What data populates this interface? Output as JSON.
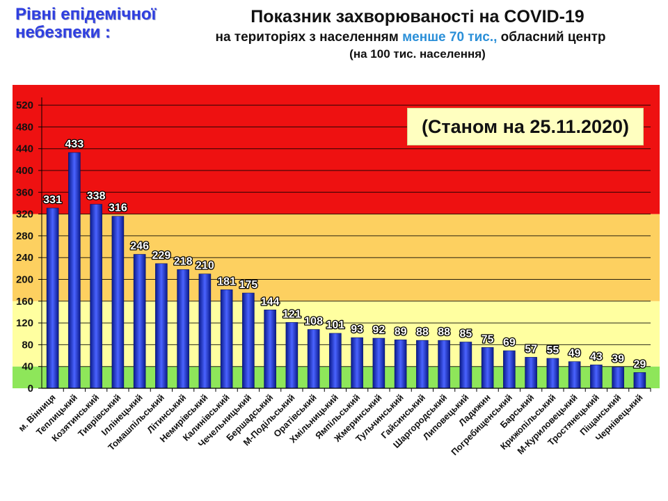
{
  "header": {
    "levels_title": "Рівні епідемічної небезпеки :",
    "title": "Показник захворюваності на COVID-19",
    "subtitle_pre": "на територіях з населенням ",
    "subtitle_highlight": "менше 70 тис.,",
    "subtitle_post": " обласний центр",
    "subtitle2": "(на 100  тис. населення)"
  },
  "date_label": "(Станом на 25.11.2020)",
  "colors": {
    "red_zone": "#ee1111",
    "orange_zone": "#fdd060",
    "yellow_zone": "#ffffa0",
    "green_zone": "#8ee65a",
    "bar": "#1f34d8",
    "levels_title": "#2f3fe0",
    "highlight": "#2a8fd8"
  },
  "chart_data": {
    "type": "bar",
    "title": "Показник захворюваності на COVID-19",
    "subtitle": "на територіях з населенням менше 70 тис., обласний центр (на 100  тис. населення)",
    "xlabel": "",
    "ylabel": "",
    "ylim": [
      0,
      540
    ],
    "yticks": [
      0,
      40,
      80,
      120,
      160,
      200,
      240,
      280,
      320,
      360,
      400,
      440,
      480,
      520
    ],
    "grid": true,
    "legend": "none",
    "zones": [
      {
        "name": "green",
        "from": 0,
        "to": 40
      },
      {
        "name": "yellow",
        "from": 40,
        "to": 160
      },
      {
        "name": "orange",
        "from": 160,
        "to": 320
      },
      {
        "name": "red",
        "from": 320,
        "to": 560
      }
    ],
    "categories": [
      "м. Вінниця",
      "Теплицький",
      "Козятинський",
      "Тиврівський",
      "Іллінецький",
      "Томашпільський",
      "Літинський",
      "Немирівський",
      "Калинівський",
      "Чечельницький",
      "Бершадський",
      "М-Подільський",
      "Оратівський",
      "Хмільницький",
      "Ямпільський",
      "Жмеринський",
      "Тульчинський",
      "Гайсинський",
      "Шаргородський",
      "Липовецький",
      "Ладижин",
      "Погребищенський",
      "Барський",
      "Крижопільський",
      "М-Куриловецький",
      "Тростянецький",
      "Піщанський",
      "Чернівецький"
    ],
    "values": [
      331,
      433,
      338,
      316,
      246,
      229,
      218,
      210,
      181,
      175,
      144,
      121,
      108,
      101,
      93,
      92,
      89,
      88,
      88,
      85,
      75,
      69,
      57,
      55,
      49,
      43,
      39,
      29
    ]
  }
}
